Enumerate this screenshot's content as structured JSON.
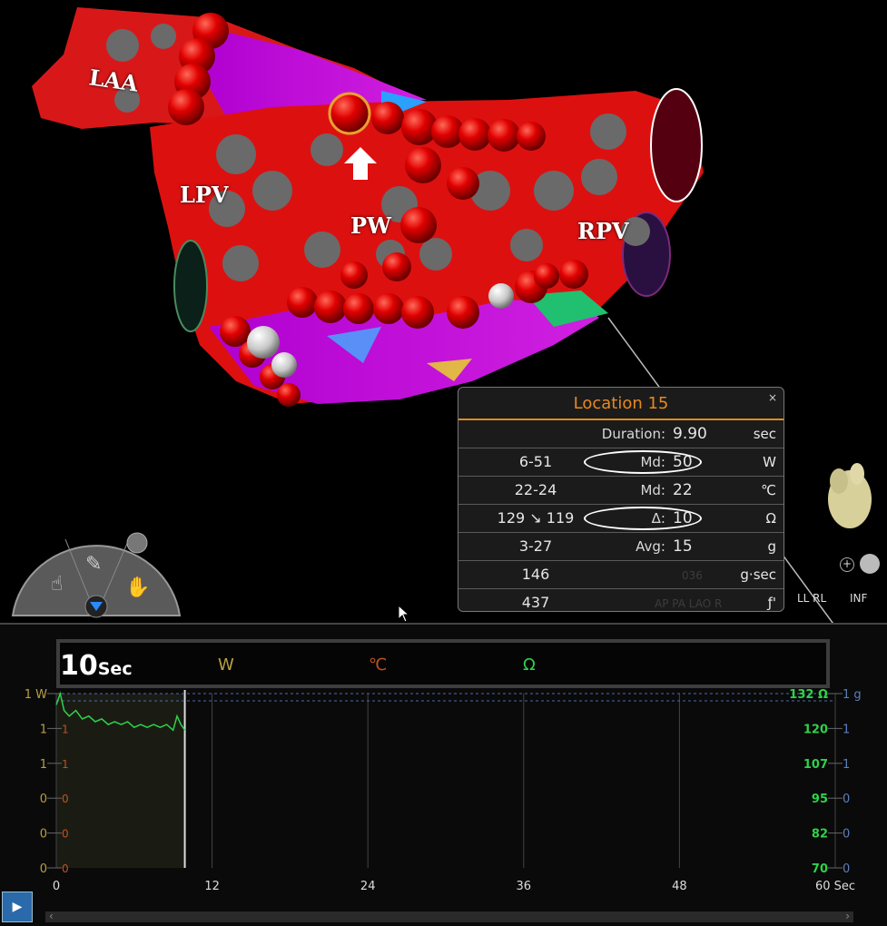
{
  "anatomy": {
    "laa": "LAA",
    "lpv": "LPV",
    "pw": "PW",
    "rpv": "RPV"
  },
  "popup": {
    "title": "Location 15",
    "close": "×",
    "rows": [
      {
        "left": "",
        "mid_label": "Duration:",
        "mid_value": "9.90",
        "unit": "sec",
        "circled": false
      },
      {
        "left": "6-51",
        "mid_label": "Md:",
        "mid_value": "50",
        "unit": "W",
        "circled": true
      },
      {
        "left": "22-24",
        "mid_label": "Md:",
        "mid_value": "22",
        "unit": "℃",
        "circled": false
      },
      {
        "left": "129 ↘ 119",
        "mid_label": "Δ:",
        "mid_value": "10",
        "unit": "Ω",
        "circled": true
      },
      {
        "left": "3-27",
        "mid_label": "Avg:",
        "mid_value": "15",
        "unit": "g",
        "circled": false
      },
      {
        "left": "146",
        "mid_label": "",
        "mid_value": "",
        "unit": "g·sec",
        "circled": false
      },
      {
        "left": "437",
        "mid_label": "",
        "mid_value": "",
        "unit": "ƒ'",
        "circled": false
      }
    ],
    "ghost_text": {
      "row6": "036",
      "row7": "AP  PA  LAO  R"
    }
  },
  "view_controls": {
    "ll_rl": "LL RL",
    "inf": "INF"
  },
  "chart_legend": {
    "w": "W",
    "c": "℃",
    "ohm": "Ω",
    "sec_value": "10",
    "sec_unit": "Sec"
  },
  "chart_data": {
    "type": "line",
    "x": [
      0,
      12,
      24,
      36,
      48,
      60
    ],
    "x_tick_labels": [
      "0",
      "12",
      "24",
      "36",
      "48",
      "60 Sec"
    ],
    "left_ticks_w": [
      "1 W",
      "1",
      "1",
      "0",
      "0",
      "0"
    ],
    "left_ticks_c": [
      "1 °C",
      "1",
      "1",
      "0",
      "0",
      "0"
    ],
    "right_ticks_ohm": [
      "132 Ω",
      "120",
      "107",
      "95",
      "82",
      "70"
    ],
    "right_ticks_g": [
      "1 g",
      "1",
      "1",
      "0",
      "0",
      "0"
    ],
    "impedance_series": {
      "name": "Ω",
      "x": [
        0,
        0.3,
        0.6,
        1.0,
        1.5,
        2.0,
        2.5,
        3.0,
        3.5,
        4.0,
        4.5,
        5.0,
        5.5,
        6.0,
        6.5,
        7.0,
        7.5,
        8.0,
        8.5,
        9.0,
        9.3,
        9.6,
        9.9
      ],
      "y": [
        128,
        132,
        126,
        124,
        126,
        123,
        124,
        122,
        123,
        121,
        122,
        121,
        122,
        120,
        121,
        120,
        121,
        120,
        121,
        119,
        124,
        121,
        119
      ]
    },
    "ylim_ohm": [
      70,
      132
    ],
    "xlim": [
      0,
      60
    ],
    "ablation_window_sec": [
      0,
      9.9
    ],
    "colors": {
      "w": "#b8a040",
      "c": "#c05020",
      "ohm": "#2fd24a",
      "g": "#5b7fbf"
    }
  },
  "colors": {
    "popup_title": "#e88a1f",
    "play_button": "#2b6aaa"
  }
}
